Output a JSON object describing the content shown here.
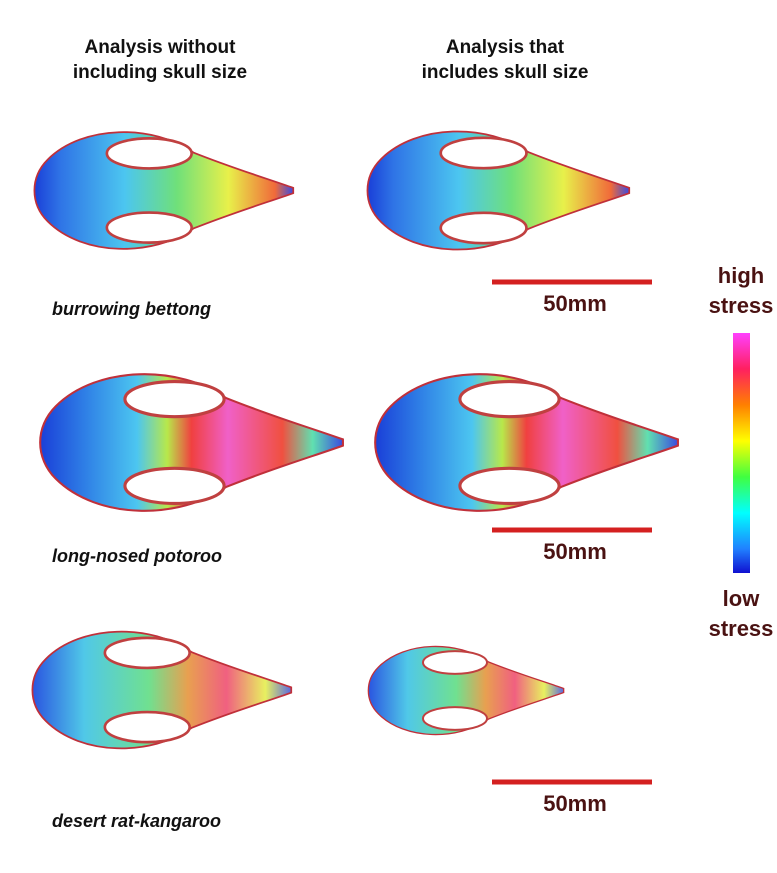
{
  "headers": [
    [
      "Analysis without",
      "including skull size"
    ],
    [
      "Analysis that",
      "includes skull size"
    ]
  ],
  "species": [
    "burrowing bettong",
    "long-nosed potoroo",
    "desert rat-kangaroo"
  ],
  "scale_bars": [
    "50mm",
    "50mm",
    "50mm"
  ],
  "legend": {
    "high": [
      "high",
      "stress"
    ],
    "low": [
      "low",
      "stress"
    ]
  }
}
